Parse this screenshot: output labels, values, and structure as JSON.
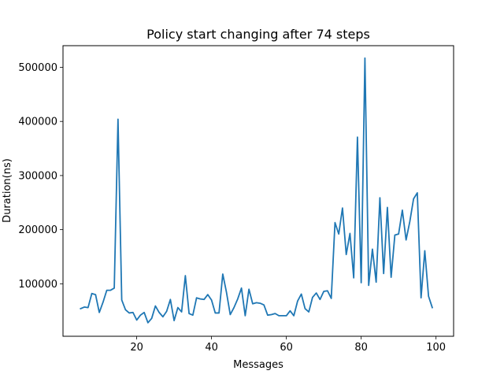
{
  "chart_data": {
    "type": "line",
    "title": "Policy start changing after 74 steps",
    "xlabel": "Messages",
    "ylabel": "Duration(ns)",
    "xlim": [
      0.3,
      104.7
    ],
    "ylim": [
      3000,
      540000
    ],
    "xticks": [
      20,
      40,
      60,
      80,
      100
    ],
    "yticks": [
      100000,
      200000,
      300000,
      400000,
      500000
    ],
    "grid": false,
    "color": "#1f77b4",
    "series": [
      {
        "x": [
          5,
          6,
          7,
          8,
          9,
          10,
          11,
          12,
          13,
          14,
          15,
          16,
          17,
          18,
          19,
          20,
          21,
          22,
          23,
          24,
          25,
          26,
          27,
          28,
          29,
          30,
          31,
          32,
          33,
          34,
          35,
          36,
          37,
          38,
          39,
          40,
          41,
          42,
          43,
          44,
          45,
          46,
          47,
          48,
          49,
          50,
          51,
          52,
          53,
          54,
          55,
          56,
          57,
          58,
          59,
          60,
          61,
          62,
          63,
          64,
          65,
          66,
          67,
          68,
          69,
          70,
          71,
          72,
          73,
          74,
          75,
          76,
          77,
          78,
          79,
          80,
          81,
          82,
          83,
          84,
          85,
          86,
          87,
          88,
          89,
          90,
          91,
          92,
          93,
          94,
          95,
          96,
          97,
          98,
          99
        ],
        "values": [
          54000,
          57000,
          56000,
          82000,
          80000,
          47000,
          66000,
          88000,
          88000,
          92000,
          404000,
          70000,
          52000,
          46000,
          47000,
          33000,
          42000,
          47000,
          28000,
          36000,
          59000,
          47000,
          39000,
          49000,
          71000,
          32000,
          56000,
          48000,
          115000,
          45000,
          42000,
          74000,
          72000,
          71000,
          80000,
          70000,
          46000,
          46000,
          118000,
          84000,
          43000,
          56000,
          72000,
          92000,
          41000,
          90000,
          63000,
          65000,
          64000,
          61000,
          42000,
          43000,
          45000,
          41000,
          41000,
          41000,
          50000,
          41000,
          68000,
          81000,
          54000,
          48000,
          75000,
          83000,
          71000,
          86000,
          87000,
          73000,
          213000,
          192000,
          240000,
          154000,
          193000,
          111000,
          371000,
          102000,
          517000,
          97000,
          164000,
          103000,
          259000,
          119000,
          241000,
          112000,
          190000,
          192000,
          236000,
          181000,
          215000,
          257000,
          268000,
          74000,
          161000,
          77000,
          56000
        ]
      }
    ]
  }
}
